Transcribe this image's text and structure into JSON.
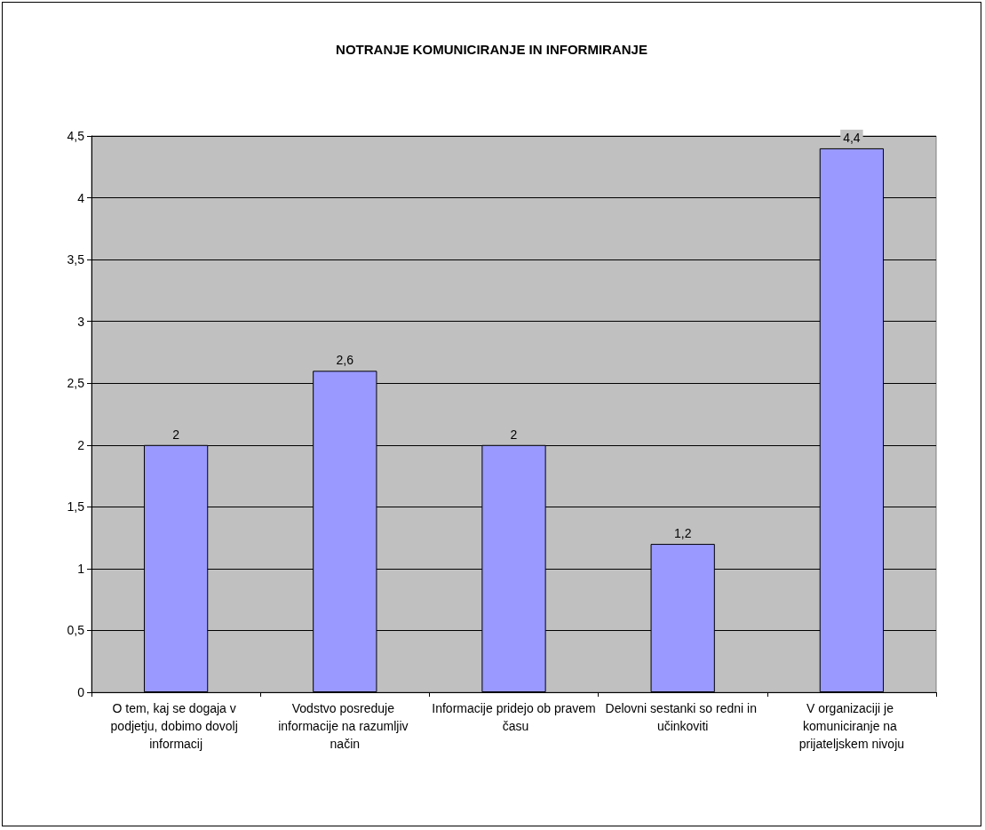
{
  "chart_data": {
    "type": "bar",
    "title": "NOTRANJE KOMUNICIRANJE IN INFORMIRANJE",
    "categories": [
      "O tem, kaj se dogaja v podjetju, dobimo dovolj informacij",
      "Vodstvo posreduje informacije na razumljiv način",
      "Informacije pridejo ob pravem času",
      "Delovni sestanki so redni in učinkoviti",
      "V organizaciji je komuniciranje na prijateljskem nivoju"
    ],
    "values": [
      2,
      2.6,
      2,
      1.2,
      4.4
    ],
    "value_labels": [
      "2",
      "2,6",
      "2",
      "1,2",
      "4,4"
    ],
    "color": "#9999ff",
    "ylim": [
      0,
      4.5
    ],
    "yticks": [
      0,
      {
        "value": 0.5,
        "label": "0,5"
      },
      1,
      {
        "value": 1.5,
        "label": "1,5"
      },
      2,
      {
        "value": 2.5,
        "label": "2,5"
      },
      3,
      {
        "value": 3.5,
        "label": "3,5"
      },
      4,
      {
        "value": 4.5,
        "label": "4,5"
      }
    ],
    "grid": "y"
  }
}
